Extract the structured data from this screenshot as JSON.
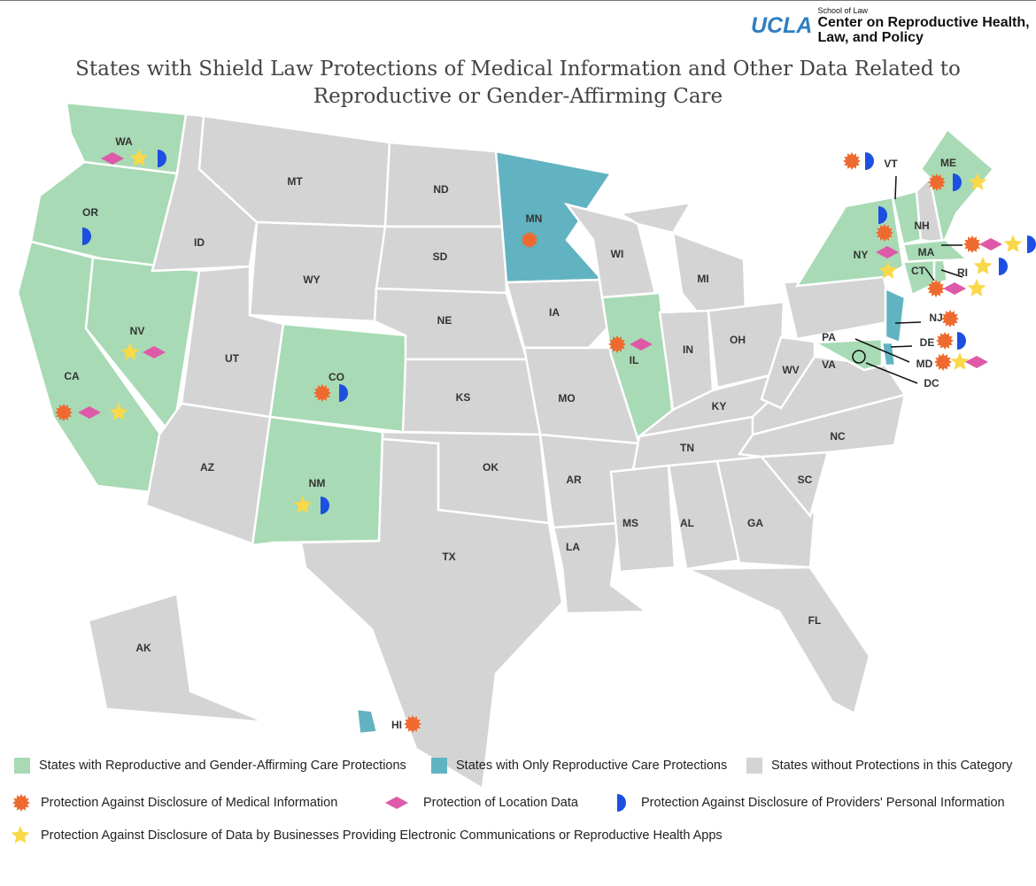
{
  "logo": {
    "brand": "UCLA",
    "school": "School of Law",
    "center_line1": "Center on Reproductive Health,",
    "center_line2": "Law, and Policy"
  },
  "title_line1": "States with Shield Law Protections of Medical Information and Other Data Related to",
  "title_line2": "Reproductive or Gender-Affirming Care",
  "colors": {
    "both": "#a8dab5",
    "reproductive_only": "#62b3c1",
    "none": "#d4d4d4",
    "medical": "#ee6a2f",
    "location": "#de5aa8",
    "business": "#f9d84a",
    "providers": "#1d4fe0"
  },
  "states": {
    "WA": {
      "cat": "both",
      "p": [
        "location",
        "business",
        "providers"
      ]
    },
    "OR": {
      "cat": "both",
      "p": [
        "providers"
      ]
    },
    "CA": {
      "cat": "both",
      "p": [
        "medical",
        "location",
        "business"
      ]
    },
    "NV": {
      "cat": "both",
      "p": [
        "business",
        "location"
      ]
    },
    "CO": {
      "cat": "both",
      "p": [
        "medical",
        "providers"
      ]
    },
    "NM": {
      "cat": "both",
      "p": [
        "business",
        "providers"
      ]
    },
    "MN": {
      "cat": "reproductive_only",
      "p": [
        "medical"
      ]
    },
    "IL": {
      "cat": "both",
      "p": [
        "medical",
        "location"
      ]
    },
    "HI": {
      "cat": "reproductive_only",
      "p": [
        "medical"
      ]
    },
    "VT": {
      "cat": "both",
      "p": [
        "medical",
        "providers"
      ]
    },
    "NY": {
      "cat": "both",
      "p": [
        "providers",
        "medical",
        "location",
        "business"
      ]
    },
    "ME": {
      "cat": "both",
      "p": [
        "medical",
        "providers",
        "business"
      ]
    },
    "MA": {
      "cat": "both",
      "p": [
        "medical",
        "location",
        "business",
        "providers"
      ]
    },
    "RI": {
      "cat": "both",
      "p": [
        "business",
        "providers"
      ]
    },
    "CT": {
      "cat": "both",
      "p": [
        "medical",
        "location",
        "business"
      ]
    },
    "NJ": {
      "cat": "reproductive_only",
      "p": [
        "medical"
      ]
    },
    "DE": {
      "cat": "reproductive_only",
      "p": [
        "medical",
        "providers"
      ]
    },
    "MD": {
      "cat": "both",
      "p": [
        "medical",
        "business",
        "location"
      ]
    },
    "DC": {
      "cat": "none",
      "p": []
    },
    "ID": {
      "cat": "none"
    },
    "MT": {
      "cat": "none"
    },
    "WY": {
      "cat": "none"
    },
    "UT": {
      "cat": "none"
    },
    "AZ": {
      "cat": "none"
    },
    "ND": {
      "cat": "none"
    },
    "SD": {
      "cat": "none"
    },
    "NE": {
      "cat": "none"
    },
    "KS": {
      "cat": "none"
    },
    "OK": {
      "cat": "none"
    },
    "TX": {
      "cat": "none"
    },
    "IA": {
      "cat": "none"
    },
    "MO": {
      "cat": "none"
    },
    "AR": {
      "cat": "none"
    },
    "LA": {
      "cat": "none"
    },
    "WI": {
      "cat": "none"
    },
    "MI": {
      "cat": "none"
    },
    "IN": {
      "cat": "none"
    },
    "OH": {
      "cat": "none"
    },
    "KY": {
      "cat": "none"
    },
    "TN": {
      "cat": "none"
    },
    "MS": {
      "cat": "none"
    },
    "AL": {
      "cat": "none"
    },
    "GA": {
      "cat": "none"
    },
    "FL": {
      "cat": "none"
    },
    "SC": {
      "cat": "none"
    },
    "NC": {
      "cat": "none"
    },
    "VA": {
      "cat": "none"
    },
    "WV": {
      "cat": "none"
    },
    "PA": {
      "cat": "none"
    },
    "NH": {
      "cat": "none"
    },
    "AK": {
      "cat": "none"
    }
  },
  "legend": {
    "both": "States with Reproductive and Gender-Affirming Care Protections",
    "reproductive_only": "States with Only Reproductive Care Protections",
    "none": "States without Protections in this Category",
    "medical": "Protection Against Disclosure of Medical Information",
    "location": "Protection of Location Data",
    "providers": "Protection Against Disclosure of Providers' Personal Information",
    "business": "Protection Against Disclosure of Data by Businesses Providing Electronic Communications or Reproductive Health Apps"
  }
}
